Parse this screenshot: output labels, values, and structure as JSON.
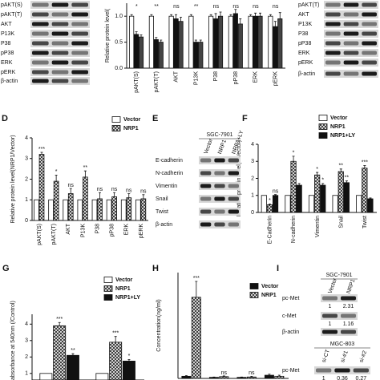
{
  "panel_labels": [
    "D",
    "E",
    "F",
    "G",
    "H",
    "I"
  ],
  "chart_data": [
    {
      "type": "bar",
      "y_label": "Relative protein level(",
      "categories": [
        "pAKT(S)",
        "pAKT(T)",
        "AKT",
        "P13K",
        "P38",
        "pP38",
        "ERK",
        "pERK"
      ],
      "ylim": [
        0,
        1.25
      ],
      "yticks": [
        {
          "value": 0,
          "label": "0.0"
        },
        {
          "value": 0.5,
          "label": "0.5"
        },
        {
          "value": 1,
          "label": "1.0"
        }
      ],
      "sig": [
        "*",
        "**",
        "ns",
        "**",
        "ns",
        "ns",
        "ns",
        "ns"
      ],
      "series": [
        {
          "color": "#ffffff",
          "values": [
            1,
            1,
            1,
            1,
            1,
            1,
            1,
            1
          ],
          "errors": [
            0.03,
            0.03,
            0.03,
            0.03,
            0.03,
            0.03,
            0.03,
            0.03
          ]
        },
        {
          "color": "#111111",
          "values": [
            0.65,
            0.55,
            0.95,
            0.5,
            0.95,
            1.05,
            1.0,
            0.8
          ],
          "errors": [
            0.05,
            0.04,
            0.08,
            0.04,
            0.1,
            0.08,
            0.06,
            0.1
          ]
        },
        {
          "color": "#444444",
          "values": [
            0.6,
            0.5,
            0.9,
            0.5,
            1.0,
            0.85,
            1.0,
            0.95
          ],
          "errors": [
            0.04,
            0.04,
            0.08,
            0.04,
            0.08,
            0.1,
            0.06,
            0.12
          ]
        }
      ]
    },
    {
      "type": "bar",
      "y_label": "Relative protein level(NRP1/Vector)",
      "categories": [
        "pAKT(S)",
        "pAKT(T)",
        "AKT",
        "P13K",
        "P38",
        "pP38",
        "ERK",
        "pERK"
      ],
      "ylim": [
        0,
        4
      ],
      "yticks": [
        0,
        1,
        2,
        3,
        4
      ],
      "series": [
        {
          "name": "Vector",
          "color": "#ffffff",
          "values": [
            1,
            1,
            1,
            1,
            1,
            1,
            1,
            1
          ]
        },
        {
          "name": "NRP1",
          "color": "#ffffff",
          "pattern": true,
          "values": [
            3.2,
            1.9,
            1.3,
            2.1,
            1.05,
            1.15,
            1.1,
            1.05
          ],
          "errors": [
            0.1,
            0.3,
            0.25,
            0.3,
            0.3,
            0.2,
            0.2,
            0.2
          ],
          "sig": [
            "***",
            "*",
            "ns",
            "**",
            "ns",
            "ns",
            "ns",
            "ns"
          ]
        }
      ]
    },
    {
      "type": "bar",
      "y_label": "Relative protein level(1/Vector)",
      "categories": [
        "E-Cadherin",
        "N-cadherin",
        "Vimentin",
        "Snail",
        "Twist"
      ],
      "ylim": [
        0,
        4
      ],
      "yticks": [
        0,
        1,
        2,
        3,
        4
      ],
      "series": [
        {
          "name": "Vector",
          "color": "#ffffff",
          "values": [
            1,
            1,
            1,
            1,
            1
          ]
        },
        {
          "name": "NRP1",
          "color": "#ffffff",
          "pattern": true,
          "values": [
            0.45,
            3.0,
            2.2,
            2.4,
            2.6
          ],
          "errors": [
            0.05,
            0.3,
            0.15,
            0.15,
            0.15
          ],
          "sig": [
            "*",
            "*",
            "*",
            "**",
            "***"
          ]
        },
        {
          "name": "NRP1+LY",
          "color": "#111111",
          "values": [
            1.0,
            1.6,
            1.6,
            1.75,
            0.8
          ],
          "errors": [
            0.05,
            0.1,
            0.1,
            0.1,
            0.05
          ],
          "sig": [
            "ns",
            null,
            "*",
            "**",
            null
          ]
        }
      ]
    },
    {
      "type": "bar",
      "y_label": "ative absorbance at 540nm (/Control)",
      "categories": [
        null,
        null
      ],
      "ylim": [
        0.6,
        4.6
      ],
      "yticks": [
        1,
        2,
        3,
        4
      ],
      "series": [
        {
          "name": "Vector",
          "color": "#ffffff",
          "values": [
            1,
            1
          ]
        },
        {
          "name": "NRP1",
          "color": "#ffffff",
          "pattern": true,
          "values": [
            3.9,
            2.9
          ],
          "errors": [
            0.2,
            0.35
          ],
          "sig": [
            "***",
            "***"
          ]
        },
        {
          "name": "NRP1+LY",
          "color": "#111111",
          "values": [
            2.1,
            1.75
          ],
          "errors": [
            0.1,
            0.1
          ],
          "sig": [
            "**",
            "*"
          ]
        }
      ]
    },
    {
      "type": "bar",
      "y_label": "Concentration(ng/ml)",
      "categories": [
        null,
        null,
        null,
        null
      ],
      "ylim": [
        0,
        300
      ],
      "series": [
        {
          "name": "Vector",
          "color": "#111111",
          "values": [
            6,
            3,
            3,
            9
          ],
          "errors": [
            2,
            1,
            1,
            3
          ]
        },
        {
          "name": "NRP1",
          "color": "#ffffff",
          "pattern": true,
          "values": [
            230,
            5,
            4,
            6
          ],
          "errors": [
            45,
            2,
            2,
            3
          ],
          "sig": [
            "***",
            "ns",
            "ns",
            null
          ]
        }
      ]
    }
  ],
  "blots": [
    {
      "groups": [
        {
          "rows": [
            {
              "name": "pAKT(S)"
            },
            {
              "name": "pAKT(T)"
            },
            {
              "name": "AKT"
            },
            {
              "name": "P13K"
            },
            {
              "name": "P38"
            },
            {
              "name": "pP38"
            },
            {
              "name": "ERK"
            },
            {
              "name": "pERK"
            },
            {
              "name": "β-actin"
            }
          ]
        }
      ]
    },
    {
      "groups": [
        {
          "rows": [
            {
              "name": "pAKT(T)"
            },
            {
              "name": "AKT"
            },
            {
              "name": "P13K"
            },
            {
              "name": "P38"
            },
            {
              "name": "pP38"
            },
            {
              "name": "ERK"
            },
            {
              "name": "pERK"
            },
            {
              "name": "β-actin"
            }
          ]
        }
      ]
    },
    {
      "groups": [
        {
          "title": "SGC-7901",
          "columns": [
            "Vector",
            "NRP1",
            "NRP1+LY"
          ],
          "rows": [
            {
              "name": "E-cadherin"
            },
            {
              "name": "N-cadherin"
            },
            {
              "name": "Vimentin"
            },
            {
              "name": "Snail"
            },
            {
              "name": "Twist"
            },
            {
              "name": "β-actin"
            }
          ]
        }
      ]
    },
    {
      "groups": [
        {
          "title": "SGC-7901",
          "columns": [
            "Vector",
            "NRP1"
          ],
          "rows": [
            {
              "name": "pc-Met",
              "values": [
                1,
                2.31
              ]
            },
            {
              "name": "c-Met",
              "values": [
                1,
                1.16
              ]
            },
            {
              "name": "β-actin"
            }
          ]
        },
        {
          "title": "MGC-803",
          "columns": [
            "si-CT",
            "si-#1",
            "si-#2"
          ],
          "rows": [
            {
              "name": "pc-Met",
              "values": [
                1,
                0.36,
                0.27
              ]
            }
          ]
        }
      ]
    }
  ]
}
